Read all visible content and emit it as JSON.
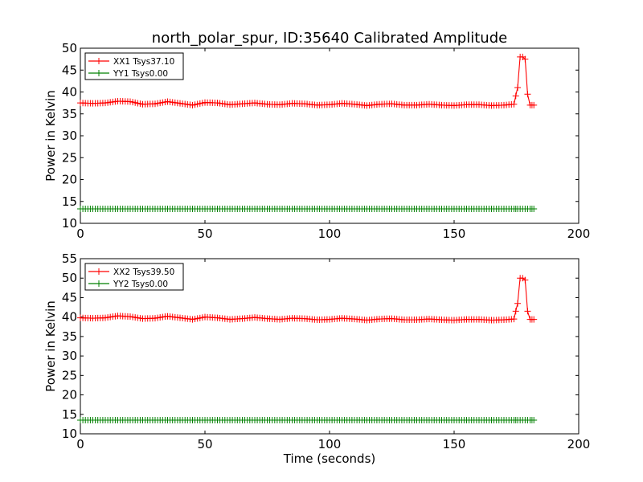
{
  "figure_title": "north_polar_spur, ID:35640 Calibrated Amplitude",
  "colors": {
    "xx": "#ff0000",
    "yy": "#008000",
    "axes": "#000000",
    "background": "#ffffff"
  },
  "chart_data": [
    {
      "type": "line",
      "marker": "+",
      "title": "north_polar_spur, ID:35640 Calibrated Amplitude",
      "xlabel": "",
      "ylabel": "Power in Kelvin",
      "xlim": [
        0,
        200
      ],
      "ylim": [
        10,
        50
      ],
      "xticks": [
        "0",
        "50",
        "100",
        "150",
        "200"
      ],
      "yticks": [
        "10",
        "15",
        "20",
        "25",
        "30",
        "35",
        "40",
        "45",
        "50"
      ],
      "legend_position": "top-left",
      "grid": false,
      "x": [
        0,
        5,
        10,
        15,
        20,
        25,
        30,
        35,
        40,
        45,
        50,
        55,
        60,
        65,
        70,
        75,
        80,
        85,
        90,
        95,
        100,
        105,
        110,
        115,
        120,
        125,
        130,
        135,
        140,
        145,
        150,
        155,
        160,
        165,
        170,
        174,
        175.5,
        176.5,
        177.5,
        178.5,
        179.5,
        180.5,
        182
      ],
      "series": [
        {
          "name": "XX1 Tsys37.10",
          "color": "#ff0000",
          "values": [
            37.5,
            37.4,
            37.5,
            37.9,
            37.8,
            37.2,
            37.3,
            37.8,
            37.4,
            37.0,
            37.6,
            37.5,
            37.1,
            37.3,
            37.5,
            37.2,
            37.1,
            37.4,
            37.3,
            37.0,
            37.1,
            37.4,
            37.2,
            36.9,
            37.2,
            37.3,
            37.0,
            37.0,
            37.2,
            37.0,
            36.9,
            37.1,
            37.1,
            36.9,
            37.0,
            37.2,
            41.0,
            48.0,
            48.0,
            47.5,
            39.5,
            37.0,
            37.0
          ]
        },
        {
          "name": "YY1 Tsys0.00",
          "color": "#008000",
          "values": [
            13.3,
            13.3,
            13.3,
            13.3,
            13.3,
            13.3,
            13.3,
            13.3,
            13.3,
            13.3,
            13.3,
            13.3,
            13.3,
            13.3,
            13.3,
            13.3,
            13.3,
            13.3,
            13.3,
            13.3,
            13.3,
            13.3,
            13.3,
            13.3,
            13.3,
            13.3,
            13.3,
            13.3,
            13.3,
            13.3,
            13.3,
            13.3,
            13.3,
            13.3,
            13.3,
            13.3,
            13.3,
            13.3,
            13.3,
            13.3,
            13.3,
            13.3,
            13.3
          ]
        }
      ]
    },
    {
      "type": "line",
      "marker": "+",
      "title": "",
      "xlabel": "Time (seconds)",
      "ylabel": "Power in Kelvin",
      "xlim": [
        0,
        200
      ],
      "ylim": [
        10,
        55
      ],
      "xticks": [
        "0",
        "50",
        "100",
        "150",
        "200"
      ],
      "yticks": [
        "10",
        "15",
        "20",
        "25",
        "30",
        "35",
        "40",
        "45",
        "50",
        "55"
      ],
      "legend_position": "top-left",
      "grid": false,
      "x": [
        0,
        5,
        10,
        15,
        20,
        25,
        30,
        35,
        40,
        45,
        50,
        55,
        60,
        65,
        70,
        75,
        80,
        85,
        90,
        95,
        100,
        105,
        110,
        115,
        120,
        125,
        130,
        135,
        140,
        145,
        150,
        155,
        160,
        165,
        170,
        174,
        175.5,
        176.5,
        177.5,
        178.5,
        179.5,
        180.5,
        182
      ],
      "series": [
        {
          "name": "XX2 Tsys39.50",
          "color": "#ff0000",
          "values": [
            39.8,
            39.7,
            39.8,
            40.3,
            40.1,
            39.6,
            39.7,
            40.2,
            39.8,
            39.4,
            40.0,
            39.8,
            39.4,
            39.6,
            39.9,
            39.6,
            39.4,
            39.7,
            39.6,
            39.3,
            39.4,
            39.7,
            39.5,
            39.2,
            39.5,
            39.6,
            39.3,
            39.3,
            39.5,
            39.3,
            39.2,
            39.4,
            39.4,
            39.2,
            39.3,
            39.5,
            43.5,
            50.0,
            50.0,
            49.5,
            41.5,
            39.4,
            39.4
          ]
        },
        {
          "name": "YY2 Tsys0.00",
          "color": "#008000",
          "values": [
            13.5,
            13.5,
            13.5,
            13.5,
            13.5,
            13.5,
            13.5,
            13.5,
            13.5,
            13.5,
            13.5,
            13.5,
            13.5,
            13.5,
            13.5,
            13.5,
            13.5,
            13.5,
            13.5,
            13.5,
            13.5,
            13.5,
            13.5,
            13.5,
            13.5,
            13.5,
            13.5,
            13.5,
            13.5,
            13.5,
            13.5,
            13.5,
            13.5,
            13.5,
            13.5,
            13.5,
            13.5,
            13.5,
            13.5,
            13.5,
            13.5,
            13.5,
            13.5
          ]
        }
      ]
    }
  ]
}
